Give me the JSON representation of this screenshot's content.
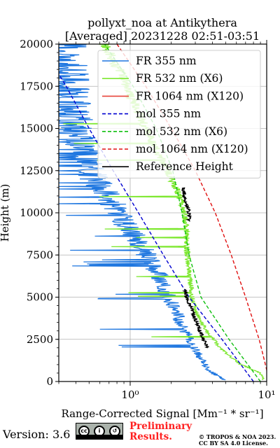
{
  "title_line1": "pollyxt_noa at Antikythera",
  "title_line2": "[Averaged] 20231228 02:51-03:51",
  "footer": {
    "version": "Version: 3.6",
    "preliminary_line1": "Preliminary",
    "preliminary_line2": "Results.",
    "copyright_line1": "© TROPOS & NOA 2023.",
    "copyright_line2": "CC BY SA 4.0 License."
  },
  "chart_data": {
    "type": "line",
    "xlabel": "Range-Corrected Signal [Mm⁻¹ * sr⁻¹]",
    "ylabel": "Height (m)",
    "xscale": "log",
    "xlim": [
      0.3,
      10
    ],
    "ylim": [
      0,
      20000
    ],
    "xticks": [
      {
        "value": 1,
        "label": "10⁰"
      },
      {
        "value": 10,
        "label": "10¹"
      }
    ],
    "yticks": [
      0,
      2500,
      5000,
      7500,
      10000,
      12500,
      15000,
      17500,
      20000
    ],
    "grid": true,
    "legend_position": "upper-right",
    "series": [
      {
        "name": "FR 355 nm",
        "color": "#1f77e0",
        "style": "solid",
        "heights": [
          100,
          500,
          1000,
          2000,
          3000,
          4000,
          5000,
          6000,
          7000,
          8000,
          9000,
          10000,
          11000,
          12000,
          13000,
          14000,
          15000,
          16000,
          17000,
          18000,
          19000,
          20000
        ],
        "values": [
          5.0,
          4.0,
          3.5,
          3.0,
          2.5,
          2.2,
          1.9,
          1.7,
          1.45,
          1.2,
          1.0,
          0.8,
          0.7,
          0.55,
          0.5,
          0.45,
          0.4,
          0.38,
          0.36,
          0.35,
          0.34,
          0.33
        ]
      },
      {
        "name": "FR 532 nm (X6)",
        "color": "#7ee830",
        "style": "solid",
        "heights": [
          100,
          500,
          1000,
          2000,
          2500,
          3000,
          4000,
          5000,
          6000,
          7000,
          8000,
          9000,
          10000,
          11000,
          12000,
          13000,
          14000,
          15000,
          16000,
          17000,
          18000,
          19000,
          20000
        ],
        "values": [
          9.5,
          9.0,
          6.5,
          4.5,
          4.1,
          3.6,
          3.1,
          2.85,
          2.75,
          2.65,
          2.6,
          2.55,
          2.5,
          2.3,
          2.0,
          1.75,
          1.5,
          1.3,
          1.15,
          1.0,
          0.9,
          0.75,
          0.65
        ]
      },
      {
        "name": "FR 1064 nm (X120)",
        "color": "#e8453a",
        "style": "solid",
        "heights": [],
        "values": []
      },
      {
        "name": "mol 355 nm",
        "color": "#0000d0",
        "style": "dashed",
        "heights": [
          0,
          2500,
          5000,
          7500,
          10000,
          12500,
          15000,
          17500,
          20000
        ],
        "values": [
          8.0,
          4.7,
          2.7,
          1.75,
          1.15,
          0.75,
          0.5,
          0.34,
          0.22
        ]
      },
      {
        "name": "mol 532 nm (X6)",
        "color": "#10c010",
        "style": "dashed",
        "heights": [
          0,
          2500,
          5000,
          7500,
          10000,
          12500,
          15000,
          17500,
          20000
        ],
        "values": [
          9.0,
          5.3,
          3.3,
          2.7,
          2.4,
          2.05,
          1.55,
          1.05,
          0.65
        ]
      },
      {
        "name": "mol 1064 nm (X120)",
        "color": "#e01010",
        "style": "dashed",
        "heights": [
          0,
          2500,
          5000,
          7500,
          10000,
          12500,
          15000,
          17500,
          20000
        ],
        "values": [
          10.5,
          8.8,
          7.0,
          5.5,
          4.2,
          3.0,
          2.0,
          1.3,
          0.8
        ]
      },
      {
        "name": "Reference Height",
        "color": "#000000",
        "style": "solid",
        "segments": [
          {
            "heights": [
              2000,
              2500,
              3000,
              3500,
              4000,
              4500,
              5000,
              5500
            ],
            "values": [
              3.7,
              3.45,
              3.25,
              3.05,
              2.9,
              2.75,
              2.6,
              2.5
            ]
          },
          {
            "heights": [
              9500,
              10000,
              10500,
              11000,
              11500
            ],
            "values": [
              2.7,
              2.7,
              2.6,
              2.5,
              2.45
            ]
          }
        ]
      }
    ]
  }
}
